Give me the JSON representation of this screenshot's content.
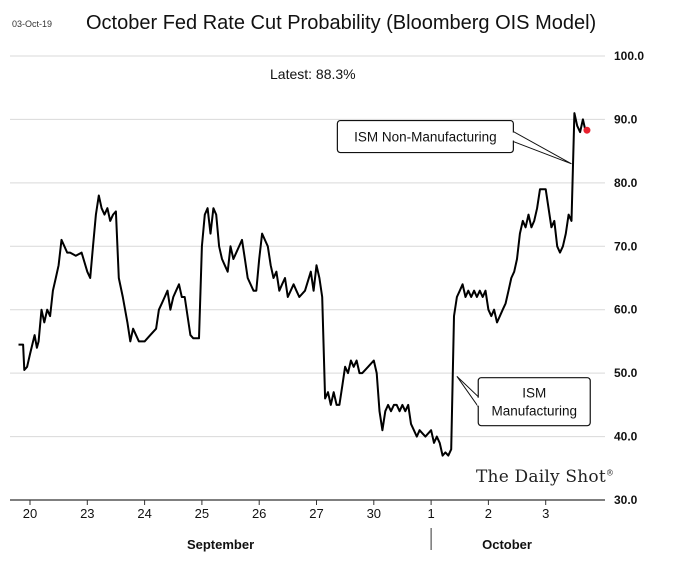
{
  "date_stamp": "03-Oct-19",
  "watermark": "The Daily Shot",
  "colors": {
    "line": "#000000",
    "grid": "#d9d9d9",
    "last_point": "#e8212e",
    "background": "#ffffff"
  },
  "chart_data": {
    "type": "line",
    "title": "October Fed Rate Cut Probability (Bloomberg OIS Model)",
    "subtitle": "Latest:  88.3%",
    "xlabel": "",
    "ylabel": "",
    "ylim": [
      30,
      100
    ],
    "y_axis_side": "right",
    "y_ticks": [
      30,
      40,
      50,
      60,
      70,
      80,
      90,
      100
    ],
    "y_tick_labels": [
      "30.0",
      "40.0",
      "50.0",
      "60.0",
      "70.0",
      "80.0",
      "90.0",
      "100.0"
    ],
    "grid": "horizontal",
    "x_ticks": [
      {
        "label": "20",
        "x": 0
      },
      {
        "label": "23",
        "x": 1
      },
      {
        "label": "24",
        "x": 2
      },
      {
        "label": "25",
        "x": 3
      },
      {
        "label": "26",
        "x": 4
      },
      {
        "label": "27",
        "x": 5
      },
      {
        "label": "30",
        "x": 6
      },
      {
        "label": "1",
        "x": 7
      },
      {
        "label": "2",
        "x": 8
      },
      {
        "label": "3",
        "x": 9
      }
    ],
    "x_groups": [
      {
        "label": "September",
        "center": 3.5
      },
      {
        "label": "October",
        "center": 8.5
      }
    ],
    "month_divider_x": 7,
    "series": [
      {
        "points": [
          [
            -0.2,
            54.5
          ],
          [
            -0.12,
            54.5
          ],
          [
            -0.1,
            50.5
          ],
          [
            -0.05,
            51
          ],
          [
            0,
            53
          ],
          [
            0.08,
            56
          ],
          [
            0.12,
            54
          ],
          [
            0.15,
            55
          ],
          [
            0.2,
            60
          ],
          [
            0.25,
            58
          ],
          [
            0.3,
            60
          ],
          [
            0.35,
            59
          ],
          [
            0.4,
            63
          ],
          [
            0.45,
            65
          ],
          [
            0.5,
            67
          ],
          [
            0.55,
            71
          ],
          [
            0.6,
            70
          ],
          [
            0.65,
            69
          ],
          [
            0.7,
            69
          ],
          [
            0.8,
            68.5
          ],
          [
            0.9,
            69
          ],
          [
            1.0,
            66
          ],
          [
            1.05,
            65
          ],
          [
            1.1,
            70
          ],
          [
            1.15,
            75
          ],
          [
            1.2,
            78
          ],
          [
            1.25,
            76
          ],
          [
            1.3,
            75
          ],
          [
            1.35,
            76
          ],
          [
            1.4,
            74
          ],
          [
            1.45,
            75
          ],
          [
            1.5,
            75.5
          ],
          [
            1.55,
            65
          ],
          [
            1.62,
            62
          ],
          [
            1.7,
            58
          ],
          [
            1.75,
            55
          ],
          [
            1.8,
            57
          ],
          [
            1.85,
            56
          ],
          [
            1.9,
            55
          ],
          [
            2.0,
            55
          ],
          [
            2.1,
            56
          ],
          [
            2.2,
            57
          ],
          [
            2.25,
            60
          ],
          [
            2.3,
            61
          ],
          [
            2.35,
            62
          ],
          [
            2.4,
            63
          ],
          [
            2.45,
            60
          ],
          [
            2.5,
            62
          ],
          [
            2.55,
            63
          ],
          [
            2.6,
            64
          ],
          [
            2.65,
            62
          ],
          [
            2.7,
            62
          ],
          [
            2.8,
            56
          ],
          [
            2.85,
            55.5
          ],
          [
            2.95,
            55.5
          ],
          [
            3.0,
            70
          ],
          [
            3.05,
            75
          ],
          [
            3.1,
            76
          ],
          [
            3.15,
            72
          ],
          [
            3.2,
            76
          ],
          [
            3.25,
            75
          ],
          [
            3.3,
            70
          ],
          [
            3.35,
            68
          ],
          [
            3.4,
            67
          ],
          [
            3.45,
            66
          ],
          [
            3.5,
            70
          ],
          [
            3.55,
            68
          ],
          [
            3.6,
            69
          ],
          [
            3.7,
            71
          ],
          [
            3.75,
            68
          ],
          [
            3.8,
            65
          ],
          [
            3.9,
            63
          ],
          [
            3.95,
            63
          ],
          [
            4.0,
            68
          ],
          [
            4.05,
            72
          ],
          [
            4.1,
            71
          ],
          [
            4.15,
            70
          ],
          [
            4.2,
            67
          ],
          [
            4.25,
            65
          ],
          [
            4.3,
            66
          ],
          [
            4.35,
            63
          ],
          [
            4.4,
            64
          ],
          [
            4.45,
            65
          ],
          [
            4.5,
            62
          ],
          [
            4.55,
            63
          ],
          [
            4.6,
            64
          ],
          [
            4.65,
            63
          ],
          [
            4.7,
            62
          ],
          [
            4.8,
            63
          ],
          [
            4.9,
            66
          ],
          [
            4.95,
            63
          ],
          [
            5.0,
            67
          ],
          [
            5.05,
            65
          ],
          [
            5.1,
            62
          ],
          [
            5.15,
            46
          ],
          [
            5.2,
            47
          ],
          [
            5.25,
            45
          ],
          [
            5.3,
            47
          ],
          [
            5.35,
            45
          ],
          [
            5.4,
            45
          ],
          [
            5.45,
            48
          ],
          [
            5.5,
            51
          ],
          [
            5.55,
            50
          ],
          [
            5.6,
            52
          ],
          [
            5.65,
            51
          ],
          [
            5.7,
            52
          ],
          [
            5.75,
            50
          ],
          [
            5.8,
            50
          ],
          [
            5.9,
            51
          ],
          [
            6.0,
            52
          ],
          [
            6.05,
            50
          ],
          [
            6.1,
            44
          ],
          [
            6.15,
            41
          ],
          [
            6.2,
            44
          ],
          [
            6.25,
            45
          ],
          [
            6.3,
            44
          ],
          [
            6.35,
            45
          ],
          [
            6.4,
            45
          ],
          [
            6.45,
            44
          ],
          [
            6.5,
            45
          ],
          [
            6.55,
            44
          ],
          [
            6.6,
            45
          ],
          [
            6.65,
            42
          ],
          [
            6.7,
            41
          ],
          [
            6.75,
            40
          ],
          [
            6.8,
            41
          ],
          [
            6.85,
            40.5
          ],
          [
            6.9,
            40
          ],
          [
            7.0,
            41
          ],
          [
            7.05,
            39
          ],
          [
            7.1,
            40
          ],
          [
            7.15,
            39
          ],
          [
            7.2,
            37
          ],
          [
            7.25,
            37.5
          ],
          [
            7.3,
            37
          ],
          [
            7.35,
            38
          ],
          [
            7.4,
            59
          ],
          [
            7.45,
            62
          ],
          [
            7.5,
            63
          ],
          [
            7.55,
            64
          ],
          [
            7.6,
            62
          ],
          [
            7.65,
            63
          ],
          [
            7.7,
            62
          ],
          [
            7.75,
            63
          ],
          [
            7.8,
            62
          ],
          [
            7.85,
            63
          ],
          [
            7.9,
            62
          ],
          [
            7.95,
            63
          ],
          [
            8.0,
            60
          ],
          [
            8.05,
            59
          ],
          [
            8.1,
            60
          ],
          [
            8.15,
            58
          ],
          [
            8.2,
            59
          ],
          [
            8.25,
            60
          ],
          [
            8.3,
            61
          ],
          [
            8.35,
            63
          ],
          [
            8.4,
            65
          ],
          [
            8.45,
            66
          ],
          [
            8.5,
            68
          ],
          [
            8.55,
            72
          ],
          [
            8.6,
            74
          ],
          [
            8.65,
            73
          ],
          [
            8.7,
            75
          ],
          [
            8.75,
            73
          ],
          [
            8.8,
            74
          ],
          [
            8.85,
            76
          ],
          [
            8.9,
            79
          ],
          [
            8.95,
            79
          ],
          [
            9.0,
            79
          ],
          [
            9.1,
            73
          ],
          [
            9.15,
            74
          ],
          [
            9.2,
            70
          ],
          [
            9.25,
            69
          ],
          [
            9.3,
            70
          ],
          [
            9.35,
            72
          ],
          [
            9.4,
            75
          ],
          [
            9.45,
            74
          ],
          [
            9.5,
            91
          ],
          [
            9.55,
            89
          ],
          [
            9.6,
            88
          ],
          [
            9.65,
            90
          ],
          [
            9.7,
            88
          ],
          [
            9.72,
            88.3
          ]
        ]
      }
    ],
    "last_value": 88.3,
    "annotations": [
      {
        "text": "ISM Non-Manufacturing",
        "target": [
          9.45,
          83
        ],
        "box_center": [
          6.9,
          87.3
        ]
      },
      {
        "text": "ISM\nManufacturing",
        "target": [
          7.45,
          49.5
        ],
        "box_center": [
          8.8,
          45.5
        ]
      }
    ]
  }
}
